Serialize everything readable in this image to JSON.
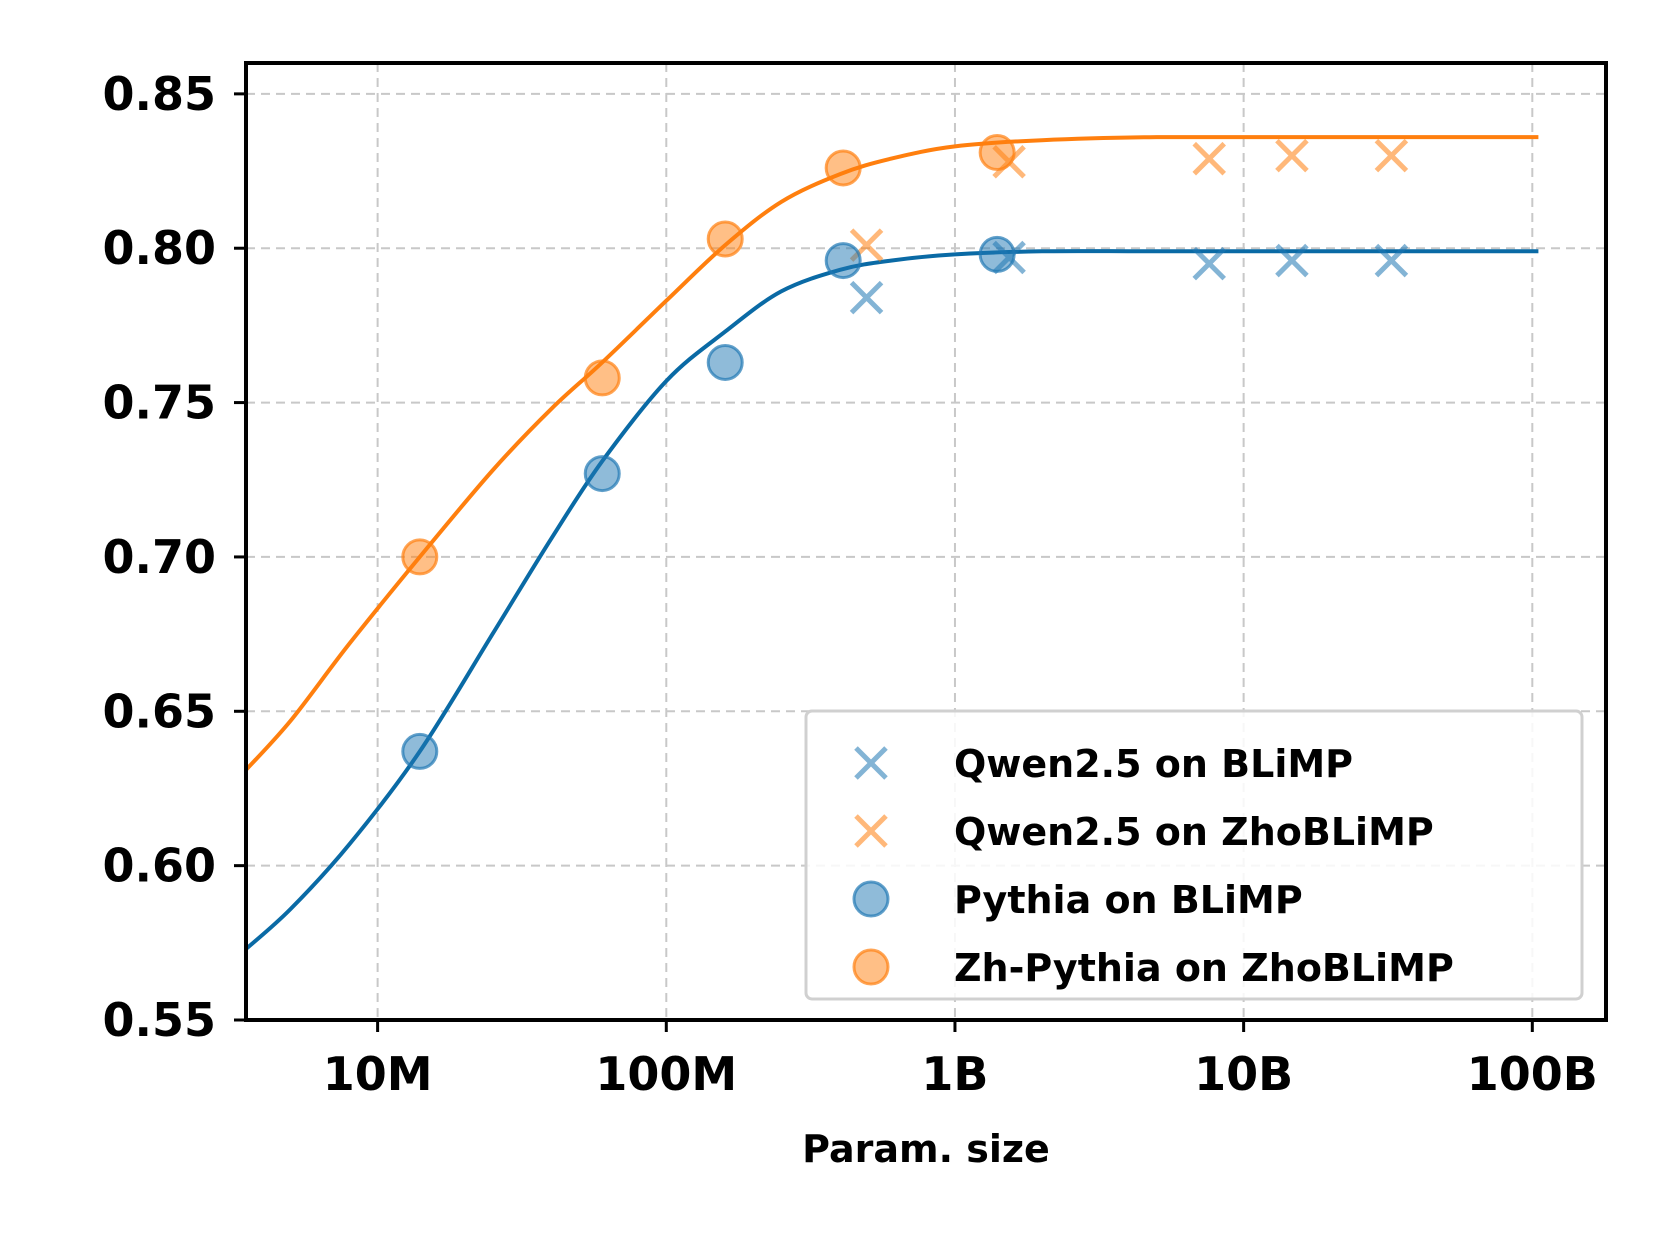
{
  "chart_data": {
    "type": "scatter",
    "title": "",
    "xlabel": "Param. size",
    "ylabel": "",
    "xscale": "log",
    "xlim": [
      3500000,
      180000000000
    ],
    "ylim": [
      0.55,
      0.86
    ],
    "grid": true,
    "legend_position": "lower-right",
    "x_ticks": [
      {
        "value": 10000000,
        "label": "10M"
      },
      {
        "value": 100000000,
        "label": "100M"
      },
      {
        "value": 1000000000,
        "label": "1B"
      },
      {
        "value": 10000000000,
        "label": "10B"
      },
      {
        "value": 100000000000,
        "label": "100B"
      }
    ],
    "y_ticks": [
      {
        "value": 0.55,
        "label": "0.55"
      },
      {
        "value": 0.6,
        "label": "0.60"
      },
      {
        "value": 0.65,
        "label": "0.65"
      },
      {
        "value": 0.7,
        "label": "0.70"
      },
      {
        "value": 0.75,
        "label": "0.75"
      },
      {
        "value": 0.8,
        "label": "0.80"
      },
      {
        "value": 0.85,
        "label": "0.85"
      }
    ],
    "colors": {
      "blue": "#1f77b4",
      "orange": "#ff7f0e",
      "blue_line": "#0a6aa5",
      "orange_line": "#ff7f0e"
    },
    "series": [
      {
        "name": "Qwen2.5 on BLiMP",
        "marker": "x",
        "color": "#1f77b4",
        "x": [
          494000000,
          1540000000,
          7600000000,
          14700000000,
          32500000000
        ],
        "y": [
          0.784,
          0.797,
          0.795,
          0.796,
          0.796
        ]
      },
      {
        "name": "Qwen2.5 on ZhoBLiMP",
        "marker": "x",
        "color": "#ff7f0e",
        "x": [
          494000000,
          1540000000,
          7600000000,
          14700000000,
          32500000000
        ],
        "y": [
          0.801,
          0.828,
          0.829,
          0.83,
          0.83
        ]
      },
      {
        "name": "Pythia on BLiMP",
        "marker": "o",
        "color": "#1f77b4",
        "x": [
          14000000,
          60000000,
          160000000,
          410000000,
          1400000000
        ],
        "y": [
          0.637,
          0.727,
          0.763,
          0.796,
          0.798
        ]
      },
      {
        "name": "Zh-Pythia on ZhoBLiMP",
        "marker": "o",
        "color": "#ff7f0e",
        "x": [
          14000000,
          60000000,
          160000000,
          410000000,
          1400000000
        ],
        "y": [
          0.7,
          0.758,
          0.803,
          0.826,
          0.831
        ]
      }
    ],
    "fit_curves": [
      {
        "name": "BLiMP fit",
        "color": "#0a6aa5",
        "x": [
          3500000,
          5000000,
          8000000,
          14000000,
          25000000,
          40000000,
          60000000,
          100000000,
          160000000,
          250000000,
          400000000,
          600000000,
          1000000000,
          2000000000,
          5000000000,
          20000000000,
          105000000000
        ],
        "y": [
          0.573,
          0.586,
          0.607,
          0.637,
          0.675,
          0.706,
          0.731,
          0.757,
          0.773,
          0.786,
          0.793,
          0.796,
          0.798,
          0.799,
          0.799,
          0.799,
          0.799
        ]
      },
      {
        "name": "ZhoBLiMP fit",
        "color": "#ff7f0e",
        "x": [
          3500000,
          5000000,
          8000000,
          14000000,
          25000000,
          40000000,
          60000000,
          100000000,
          160000000,
          250000000,
          400000000,
          600000000,
          1000000000,
          2000000000,
          5000000000,
          20000000000,
          105000000000
        ],
        "y": [
          0.631,
          0.647,
          0.672,
          0.7,
          0.728,
          0.748,
          0.763,
          0.783,
          0.801,
          0.815,
          0.824,
          0.829,
          0.833,
          0.835,
          0.836,
          0.836,
          0.836
        ]
      }
    ]
  }
}
